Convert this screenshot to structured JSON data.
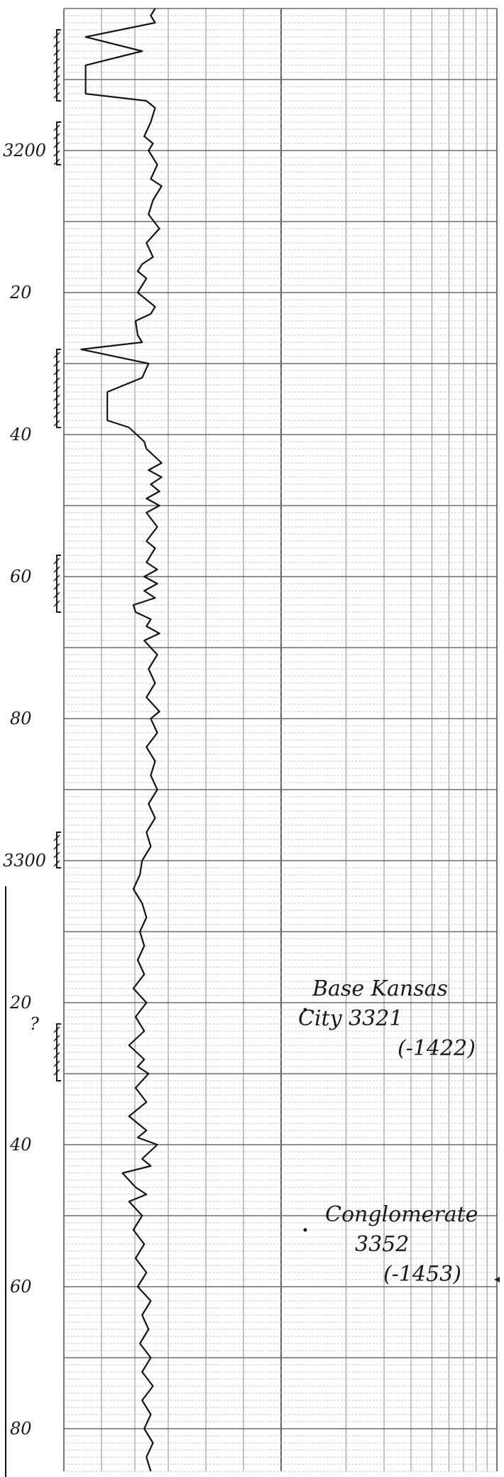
{
  "chart_data": {
    "type": "line",
    "title": "",
    "xlabel": "",
    "ylabel": "",
    "orientation": "vertical-depth",
    "depth_range": [
      3180,
      3387
    ],
    "depth_ticks": [
      {
        "depth": 3200,
        "label": "3200"
      },
      {
        "depth": 3220,
        "label": "20"
      },
      {
        "depth": 3240,
        "label": "40"
      },
      {
        "depth": 3260,
        "label": "60"
      },
      {
        "depth": 3280,
        "label": "80"
      },
      {
        "depth": 3300,
        "label": "3300"
      },
      {
        "depth": 3320,
        "label": "20"
      },
      {
        "depth": 3340,
        "label": "40"
      },
      {
        "depth": 3360,
        "label": "60"
      },
      {
        "depth": 3380,
        "label": "80"
      }
    ],
    "question_mark": {
      "depth": 3323,
      "label": "?"
    },
    "annotations": [
      {
        "depth": 3321,
        "lines": [
          "Base Kansas",
          "City 3321",
          "(-1422)"
        ]
      },
      {
        "depth": 3352,
        "lines": [
          "Conglomerate",
          "3352",
          "(-1453)"
        ]
      }
    ],
    "bracketed_intervals": [
      [
        3183,
        3193
      ],
      [
        3196,
        3202
      ],
      [
        3228,
        3239
      ],
      [
        3257,
        3265
      ],
      [
        3296,
        3301
      ],
      [
        3323,
        3331
      ]
    ],
    "series": [
      {
        "values": [
          [
            3180,
            42
          ],
          [
            3181,
            40
          ],
          [
            3182,
            42
          ],
          [
            3184,
            10
          ],
          [
            3186,
            36
          ],
          [
            3188,
            10
          ],
          [
            3190,
            10
          ],
          [
            3192,
            10
          ],
          [
            3193,
            38
          ],
          [
            3194,
            42
          ],
          [
            3196,
            40
          ],
          [
            3198,
            37
          ],
          [
            3199,
            41
          ],
          [
            3200,
            39
          ],
          [
            3202,
            43
          ],
          [
            3204,
            40
          ],
          [
            3205,
            45
          ],
          [
            3207,
            41
          ],
          [
            3209,
            39
          ],
          [
            3211,
            44
          ],
          [
            3213,
            38
          ],
          [
            3215,
            41
          ],
          [
            3216,
            36
          ],
          [
            3217,
            34
          ],
          [
            3218,
            38
          ],
          [
            3220,
            34
          ],
          [
            3222,
            42
          ],
          [
            3223,
            40
          ],
          [
            3224,
            33
          ],
          [
            3226,
            34
          ],
          [
            3227,
            36
          ],
          [
            3228,
            8
          ],
          [
            3230,
            39
          ],
          [
            3232,
            36
          ],
          [
            3234,
            20
          ],
          [
            3236,
            20
          ],
          [
            3238,
            20
          ],
          [
            3239,
            30
          ],
          [
            3241,
            37
          ],
          [
            3242,
            38
          ],
          [
            3244,
            45
          ],
          [
            3245,
            39
          ],
          [
            3246,
            45
          ],
          [
            3247,
            40
          ],
          [
            3248,
            44
          ],
          [
            3249,
            38
          ],
          [
            3250,
            44
          ],
          [
            3251,
            38
          ],
          [
            3253,
            43
          ],
          [
            3255,
            38
          ],
          [
            3256,
            42
          ],
          [
            3258,
            38
          ],
          [
            3259,
            43
          ],
          [
            3260,
            37
          ],
          [
            3261,
            43
          ],
          [
            3262,
            37
          ],
          [
            3263,
            42
          ],
          [
            3264,
            32
          ],
          [
            3265,
            33
          ],
          [
            3266,
            40
          ],
          [
            3267,
            38
          ],
          [
            3268,
            44
          ],
          [
            3269,
            37
          ],
          [
            3271,
            43
          ],
          [
            3273,
            39
          ],
          [
            3275,
            42
          ],
          [
            3277,
            38
          ],
          [
            3279,
            44
          ],
          [
            3280,
            40
          ],
          [
            3282,
            43
          ],
          [
            3284,
            38
          ],
          [
            3286,
            42
          ],
          [
            3288,
            40
          ],
          [
            3290,
            43
          ],
          [
            3292,
            39
          ],
          [
            3294,
            42
          ],
          [
            3296,
            38
          ],
          [
            3298,
            40
          ],
          [
            3300,
            36
          ],
          [
            3302,
            35
          ],
          [
            3304,
            32
          ],
          [
            3306,
            36
          ],
          [
            3308,
            38
          ],
          [
            3310,
            35
          ],
          [
            3312,
            37
          ],
          [
            3314,
            34
          ],
          [
            3316,
            37
          ],
          [
            3318,
            32
          ],
          [
            3320,
            38
          ],
          [
            3322,
            33
          ],
          [
            3324,
            37
          ],
          [
            3326,
            30
          ],
          [
            3328,
            37
          ],
          [
            3329,
            34
          ],
          [
            3330,
            39
          ],
          [
            3332,
            33
          ],
          [
            3334,
            38
          ],
          [
            3336,
            30
          ],
          [
            3338,
            38
          ],
          [
            3339,
            34
          ],
          [
            3340,
            43
          ],
          [
            3342,
            36
          ],
          [
            3343,
            40
          ],
          [
            3344,
            27
          ],
          [
            3345,
            30
          ],
          [
            3346,
            33
          ],
          [
            3347,
            38
          ],
          [
            3348,
            30
          ],
          [
            3350,
            36
          ],
          [
            3352,
            32
          ],
          [
            3354,
            37
          ],
          [
            3356,
            33
          ],
          [
            3358,
            38
          ],
          [
            3360,
            34
          ],
          [
            3362,
            40
          ],
          [
            3364,
            36
          ],
          [
            3366,
            39
          ],
          [
            3368,
            35
          ],
          [
            3370,
            40
          ],
          [
            3372,
            36
          ],
          [
            3374,
            41
          ],
          [
            3376,
            36
          ],
          [
            3378,
            40
          ],
          [
            3380,
            37
          ],
          [
            3382,
            41
          ],
          [
            3384,
            38
          ],
          [
            3386,
            40
          ]
        ]
      }
    ]
  }
}
